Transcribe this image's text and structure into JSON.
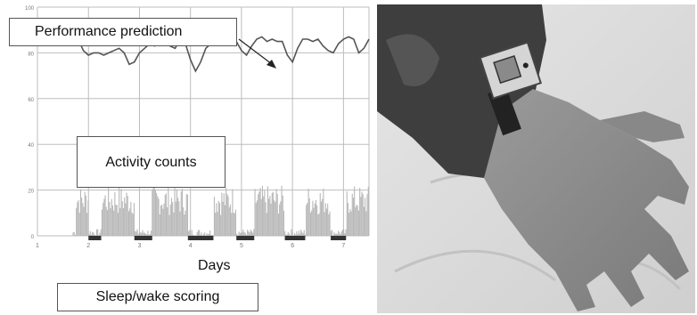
{
  "chart_data": {
    "type": "line",
    "xlabel": "Days",
    "x_ticks": [
      "1",
      "2",
      "3",
      "4",
      "5",
      "6",
      "7"
    ],
    "y_ticks": [
      "0",
      "20",
      "40",
      "60",
      "80",
      "100"
    ],
    "ylim": [
      0,
      100
    ],
    "xlim": [
      1,
      7.5
    ],
    "grid": true,
    "series_colors": {
      "performance": "#555555",
      "activity": "#b8b8b8",
      "sleep": "#333333"
    },
    "annotations": {
      "performance": "Performance prediction",
      "activity": "Activity counts",
      "sleep": "Sleep/wake scoring"
    },
    "performance_prediction": {
      "x": [
        1.7,
        1.8,
        1.9,
        2.0,
        2.1,
        2.2,
        2.3,
        2.4,
        2.5,
        2.6,
        2.7,
        2.8,
        2.9,
        3.0,
        3.1,
        3.2,
        3.3,
        3.4,
        3.5,
        3.6,
        3.7,
        3.8,
        3.9,
        4.0,
        4.1,
        4.2,
        4.3,
        4.4,
        4.5,
        4.6,
        4.7,
        4.8,
        4.9,
        5.0,
        5.1,
        5.2,
        5.3,
        5.4,
        5.5,
        5.6,
        5.7,
        5.8,
        5.9,
        6.0,
        6.1,
        6.2,
        6.3,
        6.4,
        6.5,
        6.6,
        6.7,
        6.8,
        6.9,
        7.0,
        7.1,
        7.2,
        7.3,
        7.4,
        7.5
      ],
      "y": [
        85,
        86,
        81,
        79,
        80,
        80,
        79,
        80,
        81,
        82,
        80,
        75,
        76,
        80,
        82,
        84,
        83,
        85,
        87,
        83,
        82,
        86,
        84,
        77,
        72,
        76,
        82,
        84,
        85,
        84,
        86,
        86,
        85,
        81,
        79,
        83,
        86,
        87,
        85,
        86,
        85,
        85,
        79,
        76,
        82,
        86,
        86,
        85,
        86,
        83,
        81,
        80,
        84,
        86,
        87,
        86,
        80,
        82,
        86
      ]
    },
    "activity_counts": {
      "active_intervals": [
        [
          1.75,
          2.0
        ],
        [
          2.25,
          2.9
        ],
        [
          3.25,
          3.5
        ],
        [
          3.5,
          3.95
        ],
        [
          4.45,
          4.9
        ],
        [
          5.25,
          5.85
        ],
        [
          6.25,
          6.75
        ],
        [
          7.05,
          7.5
        ]
      ],
      "active_level": 20,
      "rest_level": 2
    },
    "sleep_wake_scoring": {
      "sleep_intervals": [
        [
          2.0,
          2.25
        ],
        [
          2.9,
          3.25
        ],
        [
          3.95,
          4.45
        ],
        [
          4.9,
          5.25
        ],
        [
          5.85,
          6.25
        ],
        [
          6.75,
          7.05
        ]
      ]
    }
  },
  "photo": {
    "subject": "wrist-actigraph"
  }
}
